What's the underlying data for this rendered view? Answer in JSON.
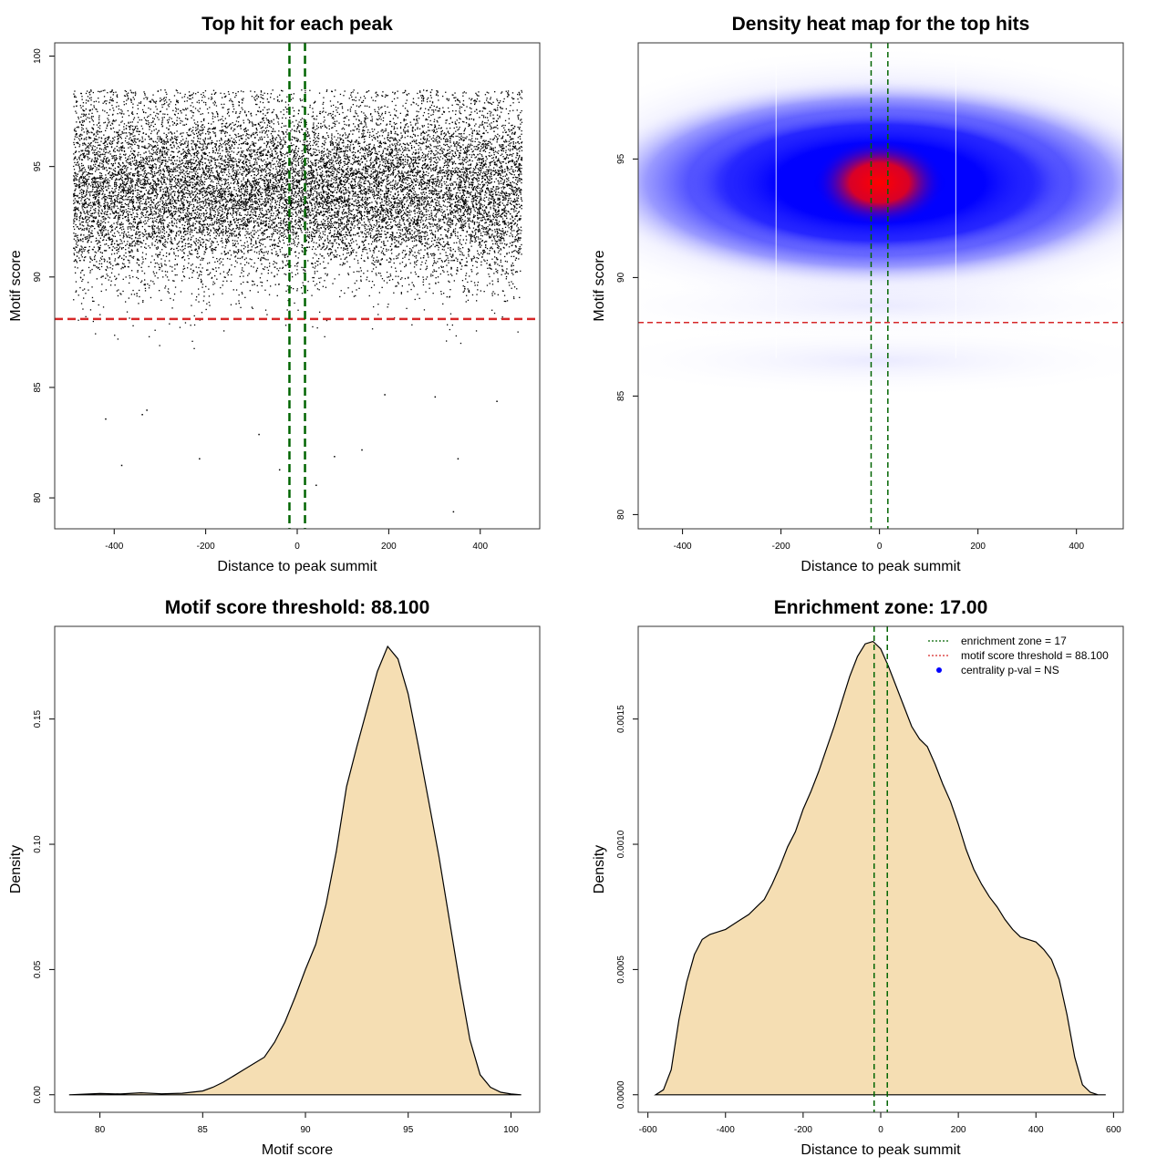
{
  "chart_data": [
    {
      "type": "scatter",
      "title": "Top hit for each peak",
      "xlabel": "Distance to peak summit",
      "ylabel": "Motif score",
      "xlim": [
        -530,
        530
      ],
      "ylim": [
        78.6,
        100.6
      ],
      "xticks": [
        -400,
        -200,
        0,
        200,
        400
      ],
      "yticks": [
        80,
        85,
        90,
        95,
        100
      ],
      "point_count": 15000,
      "distribution": {
        "x_min": -490,
        "x_max": 490,
        "y_center": 94,
        "y_spread": 2.2
      },
      "sample_outliers": [
        {
          "x": -420,
          "y": 83.6
        },
        {
          "x": -385,
          "y": 81.5
        },
        {
          "x": -330,
          "y": 84.0
        },
        {
          "x": -340,
          "y": 83.8
        },
        {
          "x": -215,
          "y": 81.8
        },
        {
          "x": -85,
          "y": 82.9
        },
        {
          "x": -40,
          "y": 81.3
        },
        {
          "x": 40,
          "y": 80.6
        },
        {
          "x": 80,
          "y": 81.9
        },
        {
          "x": 140,
          "y": 82.2
        },
        {
          "x": 340,
          "y": 79.4
        },
        {
          "x": 350,
          "y": 81.8
        },
        {
          "x": 435,
          "y": 84.4
        },
        {
          "x": 300,
          "y": 84.6
        },
        {
          "x": 190,
          "y": 84.7
        }
      ],
      "hlines": [
        {
          "y": 88.1,
          "color": "#d62728",
          "style": "dashed"
        }
      ],
      "vlines": [
        {
          "x": -17,
          "color": "#006400",
          "style": "dashed"
        },
        {
          "x": 17,
          "color": "#006400",
          "style": "dashed"
        }
      ]
    },
    {
      "type": "heatmap",
      "title": "Density heat map for the top hits",
      "xlabel": "Distance to peak summit",
      "ylabel": "Motif score",
      "xlim": [
        -490,
        495
      ],
      "ylim": [
        79.4,
        99.9
      ],
      "xticks": [
        -400,
        -200,
        0,
        200,
        400
      ],
      "yticks": [
        80,
        85,
        90,
        95
      ],
      "color_scale": [
        "#ffffff",
        "#0000ff",
        "#ff0000"
      ],
      "peak": {
        "x": 0,
        "y": 94
      },
      "hlines": [
        {
          "y": 88.1,
          "color": "#d62728",
          "style": "dashed"
        }
      ],
      "vlines": [
        {
          "x": -17,
          "color": "#006400",
          "style": "dashed"
        },
        {
          "x": 17,
          "color": "#006400",
          "style": "dashed"
        }
      ]
    },
    {
      "type": "area",
      "title": "Motif score threshold: 88.100",
      "xlabel": "Motif score",
      "ylabel": "Density",
      "xlim": [
        77.8,
        101.4
      ],
      "ylim": [
        -0.007,
        0.187
      ],
      "xticks": [
        80,
        85,
        90,
        95,
        100
      ],
      "yticks": [
        0.0,
        0.05,
        0.1,
        0.15
      ],
      "ytick_labels": [
        "0.00",
        "0.05",
        "0.10",
        "0.15"
      ],
      "fill": "#f5deb3",
      "x": [
        78.5,
        80,
        81,
        82,
        83,
        84,
        85,
        85.5,
        86,
        86.5,
        87,
        87.5,
        88,
        88.5,
        89,
        89.5,
        90,
        90.5,
        91,
        91.5,
        92,
        92.5,
        93,
        93.5,
        94,
        94.5,
        95,
        95.5,
        96,
        96.5,
        97,
        97.5,
        98,
        98.5,
        99,
        99.5,
        100,
        100.5
      ],
      "y": [
        0.0,
        0.0005,
        0.0003,
        0.0008,
        0.0004,
        0.0006,
        0.0015,
        0.003,
        0.005,
        0.0075,
        0.01,
        0.0125,
        0.015,
        0.021,
        0.029,
        0.039,
        0.05,
        0.06,
        0.076,
        0.097,
        0.123,
        0.139,
        0.154,
        0.169,
        0.179,
        0.174,
        0.16,
        0.139,
        0.117,
        0.095,
        0.07,
        0.045,
        0.022,
        0.008,
        0.003,
        0.001,
        0.0003,
        0.0
      ]
    },
    {
      "type": "area",
      "title": "Enrichment zone: 17.00",
      "xlabel": "Distance to peak summit",
      "ylabel": "Density",
      "xlim": [
        -625,
        625
      ],
      "ylim": [
        -7e-05,
        0.00187
      ],
      "xticks": [
        -600,
        -400,
        -200,
        0,
        200,
        400,
        600
      ],
      "yticks": [
        0.0,
        0.0005,
        0.001,
        0.0015
      ],
      "ytick_labels": [
        "0.0000",
        "0.0005",
        "0.0010",
        "0.0015"
      ],
      "fill": "#f5deb3",
      "x": [
        -580,
        -560,
        -540,
        -520,
        -500,
        -480,
        -460,
        -440,
        -420,
        -400,
        -380,
        -360,
        -340,
        -320,
        -300,
        -280,
        -260,
        -240,
        -220,
        -200,
        -180,
        -160,
        -140,
        -120,
        -100,
        -80,
        -60,
        -40,
        -20,
        0,
        20,
        40,
        60,
        80,
        100,
        120,
        140,
        160,
        180,
        200,
        220,
        240,
        260,
        280,
        300,
        320,
        340,
        360,
        380,
        400,
        420,
        440,
        460,
        480,
        500,
        520,
        540,
        560,
        580
      ],
      "y": [
        0.0,
        2e-05,
        0.0001,
        0.0003,
        0.00045,
        0.00056,
        0.00062,
        0.00064,
        0.00065,
        0.00066,
        0.00068,
        0.0007,
        0.00072,
        0.00075,
        0.00078,
        0.00084,
        0.00091,
        0.00099,
        0.00105,
        0.00114,
        0.00121,
        0.00129,
        0.00138,
        0.00147,
        0.00157,
        0.00167,
        0.00175,
        0.0018,
        0.00181,
        0.00178,
        0.00171,
        0.00163,
        0.00155,
        0.00147,
        0.00142,
        0.00139,
        0.00132,
        0.00124,
        0.00117,
        0.00108,
        0.00098,
        0.0009,
        0.00084,
        0.00079,
        0.00075,
        0.0007,
        0.00066,
        0.00063,
        0.00062,
        0.00061,
        0.00058,
        0.00054,
        0.00046,
        0.00032,
        0.00015,
        4e-05,
        1e-05,
        0.0,
        0.0
      ],
      "vlines": [
        {
          "x": -17,
          "color": "#006400",
          "style": "dashed"
        },
        {
          "x": 17,
          "color": "#006400",
          "style": "dashed"
        }
      ],
      "legend": {
        "position": "top-right",
        "items": [
          {
            "label": "enrichment zone = 17",
            "color": "#006400",
            "kind": "dotted-line"
          },
          {
            "label": "motif score threshold = 88.100",
            "color": "#d62728",
            "kind": "dotted-line"
          },
          {
            "label": "centrality p-val = NS",
            "color": "#0000ff",
            "kind": "point"
          }
        ]
      }
    }
  ]
}
